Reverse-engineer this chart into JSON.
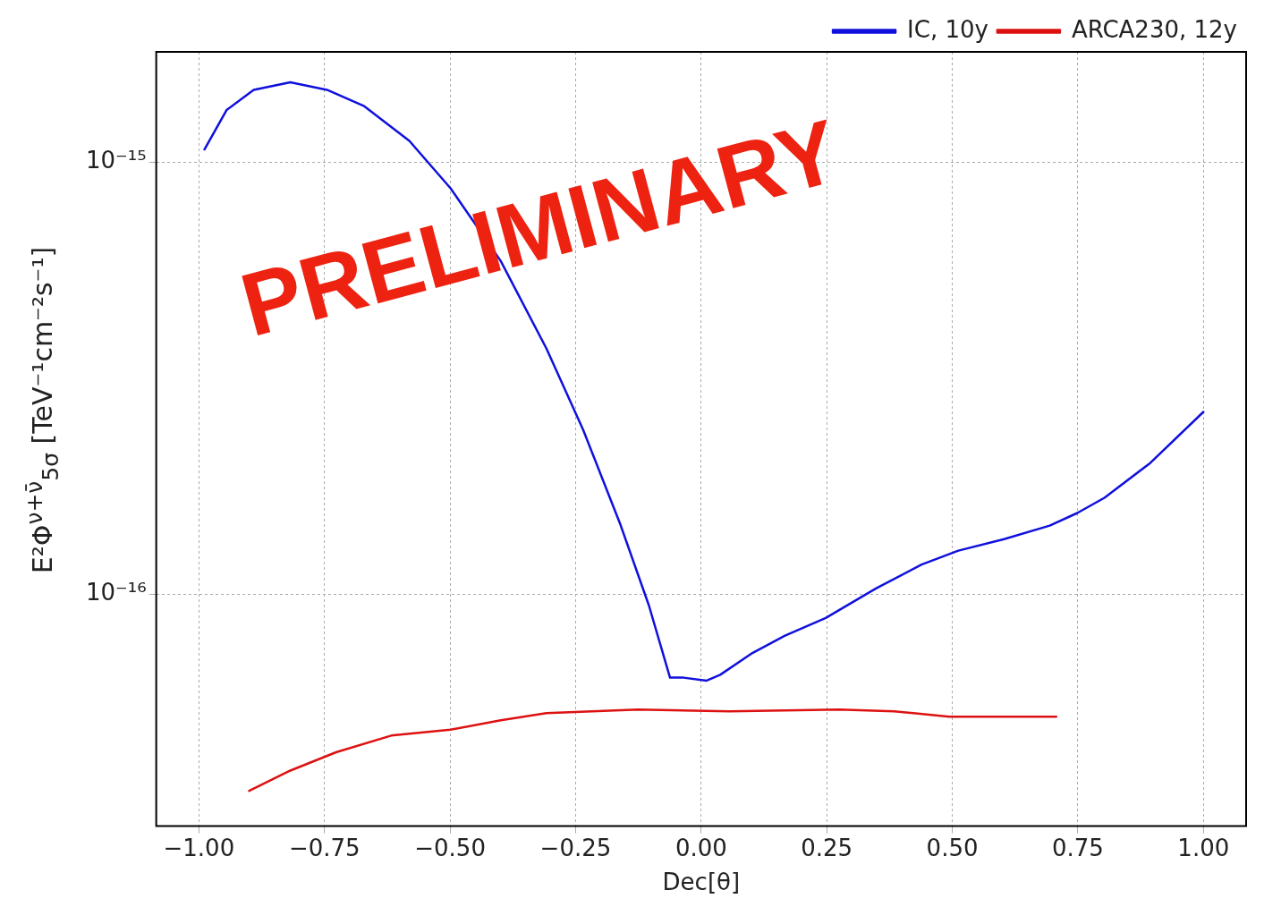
{
  "chart_data": {
    "type": "line",
    "xlabel": "Dec[θ]",
    "ylabel": "E²Φ$^{ν+ν̄}$$_{5σ}$ [TeV⁻¹cm⁻²s⁻¹]",
    "log": "y",
    "grid": true,
    "legend": "top right",
    "line_style": "solid",
    "marker": "none",
    "xlim": [
      -1.085,
      1.085
    ],
    "xticks": [
      {
        "value": -1,
        "label": "−1.00"
      },
      {
        "value": -0.75,
        "label": "−0.75"
      },
      {
        "value": -0.5,
        "label": "−0.50"
      },
      {
        "value": -0.25,
        "label": "−0.25"
      },
      {
        "value": 0,
        "label": "0.00"
      },
      {
        "value": 0.25,
        "label": "0.25"
      },
      {
        "value": 0.5,
        "label": "0.50"
      },
      {
        "value": 0.75,
        "label": "0.75"
      },
      {
        "value": 1,
        "label": "1.00"
      }
    ],
    "ylim": [
      2.9e-17,
      1.8e-15
    ],
    "yticks": [
      {
        "value": 1e-16,
        "label": "10⁻¹⁶"
      },
      {
        "value": 1e-15,
        "label": "10⁻¹⁵"
      }
    ],
    "annotations": [
      "PRELIMINARY"
    ],
    "series": [
      {
        "name": "IC, 10y",
        "color": "#1010dd",
        "x": [
          -0.989,
          -0.945,
          -0.891,
          -0.818,
          -0.745,
          -0.672,
          -0.581,
          -0.499,
          -0.399,
          -0.308,
          -0.235,
          -0.162,
          -0.104,
          -0.062,
          -0.035,
          0.011,
          0.038,
          0.102,
          0.166,
          0.248,
          0.348,
          0.439,
          0.512,
          0.603,
          0.694,
          0.749,
          0.803,
          0.894,
          1.0
        ],
        "values": [
          1.07e-15,
          1.32e-15,
          1.47e-15,
          1.53e-15,
          1.47e-15,
          1.35e-15,
          1.12e-15,
          8.7e-16,
          5.9e-16,
          3.7e-16,
          2.4e-16,
          1.46e-16,
          9.4e-17,
          6.4e-17,
          6.4e-17,
          6.3e-17,
          6.5e-17,
          7.3e-17,
          8e-17,
          8.8e-17,
          1.03e-16,
          1.17e-16,
          1.26e-16,
          1.34e-16,
          1.44e-16,
          1.54e-16,
          1.67e-16,
          2.01e-16,
          2.64e-16
        ]
      },
      {
        "name": "ARCA230, 12y",
        "color": "#dd1111",
        "x": [
          -0.9,
          -0.818,
          -0.727,
          -0.617,
          -0.499,
          -0.399,
          -0.308,
          -0.126,
          0.056,
          0.275,
          0.384,
          0.494,
          0.707
        ],
        "values": [
          3.5e-17,
          3.9e-17,
          4.3e-17,
          4.7e-17,
          4.85e-17,
          5.1e-17,
          5.3e-17,
          5.4e-17,
          5.35e-17,
          5.4e-17,
          5.35e-17,
          5.2e-17,
          5.2e-17
        ]
      }
    ]
  }
}
